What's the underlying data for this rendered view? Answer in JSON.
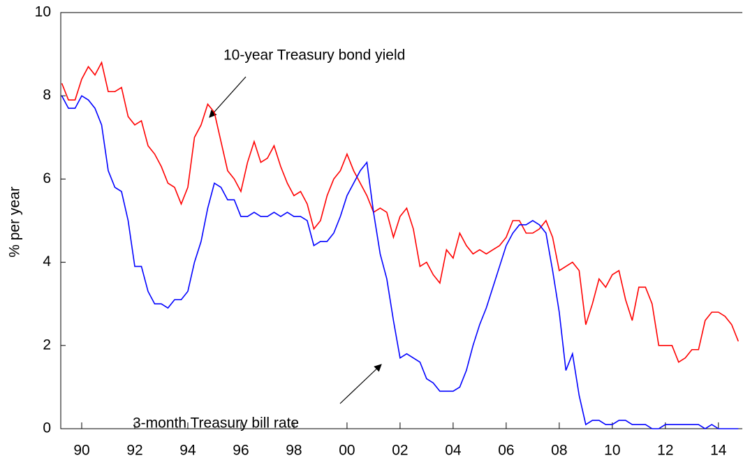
{
  "chart_data": {
    "type": "line",
    "y_label": "% per year",
    "x": [
      1989.25,
      1989.5,
      1989.75,
      1990.0,
      1990.25,
      1990.5,
      1990.75,
      1991.0,
      1991.25,
      1991.5,
      1991.75,
      1992.0,
      1992.25,
      1992.5,
      1992.75,
      1993.0,
      1993.25,
      1993.5,
      1993.75,
      1994.0,
      1994.25,
      1994.5,
      1994.75,
      1995.0,
      1995.25,
      1995.5,
      1995.75,
      1996.0,
      1996.25,
      1996.5,
      1996.75,
      1997.0,
      1997.25,
      1997.5,
      1997.75,
      1998.0,
      1998.25,
      1998.5,
      1998.75,
      1999.0,
      1999.25,
      1999.5,
      1999.75,
      2000.0,
      2000.25,
      2000.5,
      2000.75,
      2001.0,
      2001.25,
      2001.5,
      2001.75,
      2002.0,
      2002.25,
      2002.5,
      2002.75,
      2003.0,
      2003.25,
      2003.5,
      2003.75,
      2004.0,
      2004.25,
      2004.5,
      2004.75,
      2005.0,
      2005.25,
      2005.5,
      2005.75,
      2006.0,
      2006.25,
      2006.5,
      2006.75,
      2007.0,
      2007.25,
      2007.5,
      2007.75,
      2008.0,
      2008.25,
      2008.5,
      2008.75,
      2009.0,
      2009.25,
      2009.5,
      2009.75,
      2010.0,
      2010.25,
      2010.5,
      2010.75,
      2011.0,
      2011.25,
      2011.5,
      2011.75,
      2012.0,
      2012.25,
      2012.5,
      2012.75,
      2013.0,
      2013.25,
      2013.5,
      2013.75,
      2014.0,
      2014.25,
      2014.5,
      2014.75
    ],
    "series": [
      {
        "name": "10-year Treasury bond yield",
        "color": "#ff0000",
        "values": [
          8.3,
          7.9,
          7.9,
          8.4,
          8.7,
          8.5,
          8.8,
          8.1,
          8.1,
          8.2,
          7.5,
          7.3,
          7.4,
          6.8,
          6.6,
          6.3,
          5.9,
          5.8,
          5.4,
          5.8,
          7.0,
          7.3,
          7.8,
          7.6,
          6.9,
          6.2,
          6.0,
          5.7,
          6.4,
          6.9,
          6.4,
          6.5,
          6.8,
          6.3,
          5.9,
          5.6,
          5.7,
          5.4,
          4.8,
          5.0,
          5.6,
          6.0,
          6.2,
          6.6,
          6.2,
          5.9,
          5.6,
          5.2,
          5.3,
          5.2,
          4.6,
          5.1,
          5.3,
          4.8,
          3.9,
          4.0,
          3.7,
          3.5,
          4.3,
          4.1,
          4.7,
          4.4,
          4.2,
          4.3,
          4.2,
          4.3,
          4.4,
          4.6,
          5.0,
          5.0,
          4.7,
          4.7,
          4.8,
          5.0,
          4.6,
          3.8,
          3.9,
          4.0,
          3.8,
          2.5,
          3.0,
          3.6,
          3.4,
          3.7,
          3.8,
          3.1,
          2.6,
          3.4,
          3.4,
          3.0,
          2.0,
          2.0,
          2.0,
          1.6,
          1.7,
          1.9,
          1.9,
          2.6,
          2.8,
          2.8,
          2.7,
          2.5,
          2.1
        ]
      },
      {
        "name": "3-month Treasury bill rate",
        "color": "#0000ff",
        "values": [
          8.0,
          7.7,
          7.7,
          8.0,
          7.9,
          7.7,
          7.3,
          6.2,
          5.8,
          5.7,
          5.0,
          3.9,
          3.9,
          3.3,
          3.0,
          3.0,
          2.9,
          3.1,
          3.1,
          3.3,
          4.0,
          4.5,
          5.3,
          5.9,
          5.8,
          5.5,
          5.5,
          5.1,
          5.1,
          5.2,
          5.1,
          5.1,
          5.2,
          5.1,
          5.2,
          5.1,
          5.1,
          5.0,
          4.4,
          4.5,
          4.5,
          4.7,
          5.1,
          5.6,
          5.9,
          6.2,
          6.4,
          5.2,
          4.2,
          3.6,
          2.6,
          1.7,
          1.8,
          1.7,
          1.6,
          1.2,
          1.1,
          0.9,
          0.9,
          0.9,
          1.0,
          1.4,
          2.0,
          2.5,
          2.9,
          3.4,
          3.9,
          4.4,
          4.7,
          4.9,
          4.9,
          5.0,
          4.9,
          4.7,
          3.8,
          2.8,
          1.4,
          1.8,
          0.8,
          0.1,
          0.2,
          0.2,
          0.1,
          0.1,
          0.2,
          0.2,
          0.1,
          0.1,
          0.1,
          0.0,
          0.0,
          0.1,
          0.1,
          0.1,
          0.1,
          0.1,
          0.1,
          0.0,
          0.1,
          0.0,
          0.0,
          0.0,
          0.0
        ]
      }
    ],
    "xlim": [
      1989.21,
      2014.9
    ],
    "xticks": [
      {
        "value": 1990,
        "label": "90"
      },
      {
        "value": 1992,
        "label": "92"
      },
      {
        "value": 1994,
        "label": "94"
      },
      {
        "value": 1996,
        "label": "96"
      },
      {
        "value": 1998,
        "label": "98"
      },
      {
        "value": 2000,
        "label": "00"
      },
      {
        "value": 2002,
        "label": "02"
      },
      {
        "value": 2004,
        "label": "04"
      },
      {
        "value": 2006,
        "label": "06"
      },
      {
        "value": 2008,
        "label": "08"
      },
      {
        "value": 2010,
        "label": "10"
      },
      {
        "value": 2012,
        "label": "12"
      },
      {
        "value": 2014,
        "label": "14"
      }
    ],
    "ylim": [
      0,
      10
    ],
    "yticks": [
      0,
      2,
      4,
      6,
      8,
      10
    ],
    "grid": false
  }
}
